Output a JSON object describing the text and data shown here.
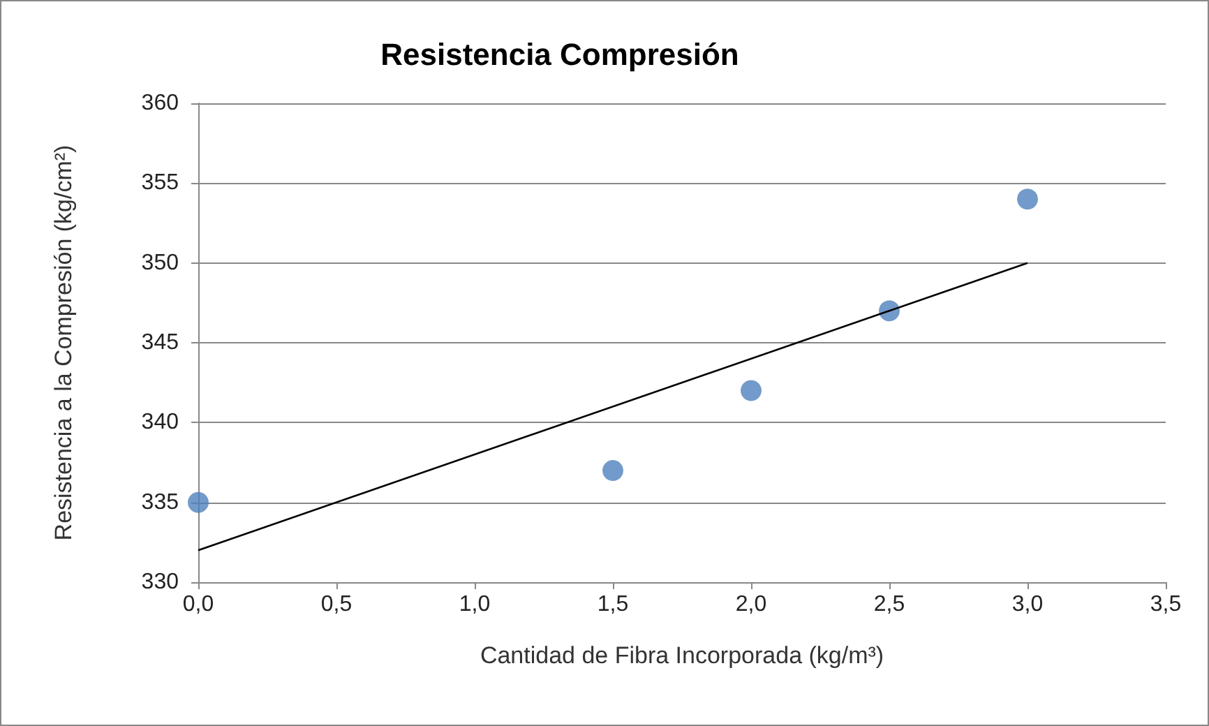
{
  "chart_data": {
    "type": "scatter",
    "title": "Resistencia Compresión",
    "xlabel": "Cantidad de Fibra Incorporada (kg/m³)",
    "ylabel": "Resistencia a la Compresión (kg/cm²)",
    "series": [
      {
        "color": "#4f81bd",
        "x": [
          0,
          1.5,
          2,
          2.5,
          3
        ],
        "values": [
          335,
          337,
          342,
          347,
          354
        ],
        "marker": "circle"
      },
      {
        "type": "line",
        "color": "#000000",
        "x": [
          0,
          3
        ],
        "values": [
          332,
          350
        ],
        "marker": "none",
        "line_style": "solid"
      }
    ],
    "xlim": [
      0,
      3.5
    ],
    "xticks": [
      {
        "value": 0,
        "label": "0,0"
      },
      {
        "value": 0.5,
        "label": "0,5"
      },
      {
        "value": 1,
        "label": "1,0"
      },
      {
        "value": 1.5,
        "label": "1,5"
      },
      {
        "value": 2,
        "label": "2,0"
      },
      {
        "value": 2.5,
        "label": "2,5"
      },
      {
        "value": 3,
        "label": "3,0"
      },
      {
        "value": 3.5,
        "label": "3,5"
      }
    ],
    "ylim": [
      330,
      360
    ],
    "yticks": [
      330,
      335,
      340,
      345,
      350,
      355,
      360
    ],
    "grid": "y"
  }
}
